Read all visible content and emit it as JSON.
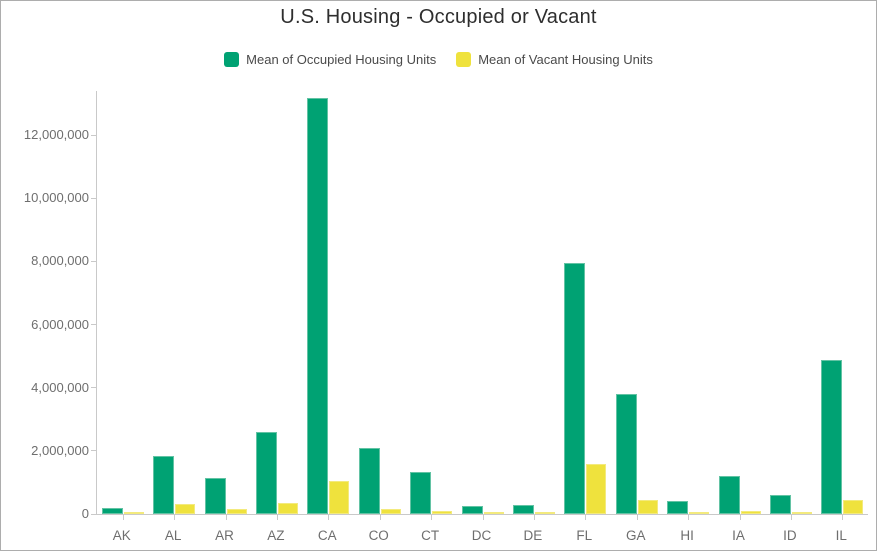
{
  "chart_data": {
    "type": "bar",
    "title": "U.S. Housing - Occupied or Vacant",
    "categories": [
      "AK",
      "AL",
      "AR",
      "AZ",
      "CA",
      "CO",
      "CT",
      "DC",
      "DE",
      "FL",
      "GA",
      "HI",
      "IA",
      "ID",
      "IL"
    ],
    "series": [
      {
        "name": "Mean of Occupied Housing Units",
        "color": "#00a273",
        "values": [
          200000,
          1840000,
          1130000,
          2600000,
          13170000,
          2090000,
          1330000,
          240000,
          300000,
          7940000,
          3800000,
          410000,
          1200000,
          600000,
          4880000
        ]
      },
      {
        "name": "Mean of Vacant Housing Units",
        "color": "#efe23d",
        "values": [
          50000,
          320000,
          160000,
          350000,
          1050000,
          160000,
          80000,
          30000,
          60000,
          1570000,
          440000,
          60000,
          90000,
          55000,
          440000
        ]
      }
    ],
    "xlabel": "",
    "ylabel": "",
    "ylim": [
      0,
      13400000
    ],
    "yticks": [
      0,
      2000000,
      4000000,
      6000000,
      8000000,
      10000000,
      12000000
    ],
    "ytick_labels": [
      "0",
      "2,000,000",
      "4,000,000",
      "6,000,000",
      "8,000,000",
      "10,000,000",
      "12,000,000"
    ],
    "grid": false,
    "legend_position": "top"
  },
  "colors": {
    "background": "#ffffff",
    "border": "#adadad",
    "axis_line": "#c9c9c9",
    "title_text": "#2e2e2e",
    "legend_text": "#4a4a4a",
    "axis_text": "#6e6e6e",
    "occupied_bar": "#00a273",
    "occupied_bar_edge": "#63c3a4",
    "vacant_bar": "#efe23d",
    "vacant_bar_edge": "#f3ea7d"
  }
}
